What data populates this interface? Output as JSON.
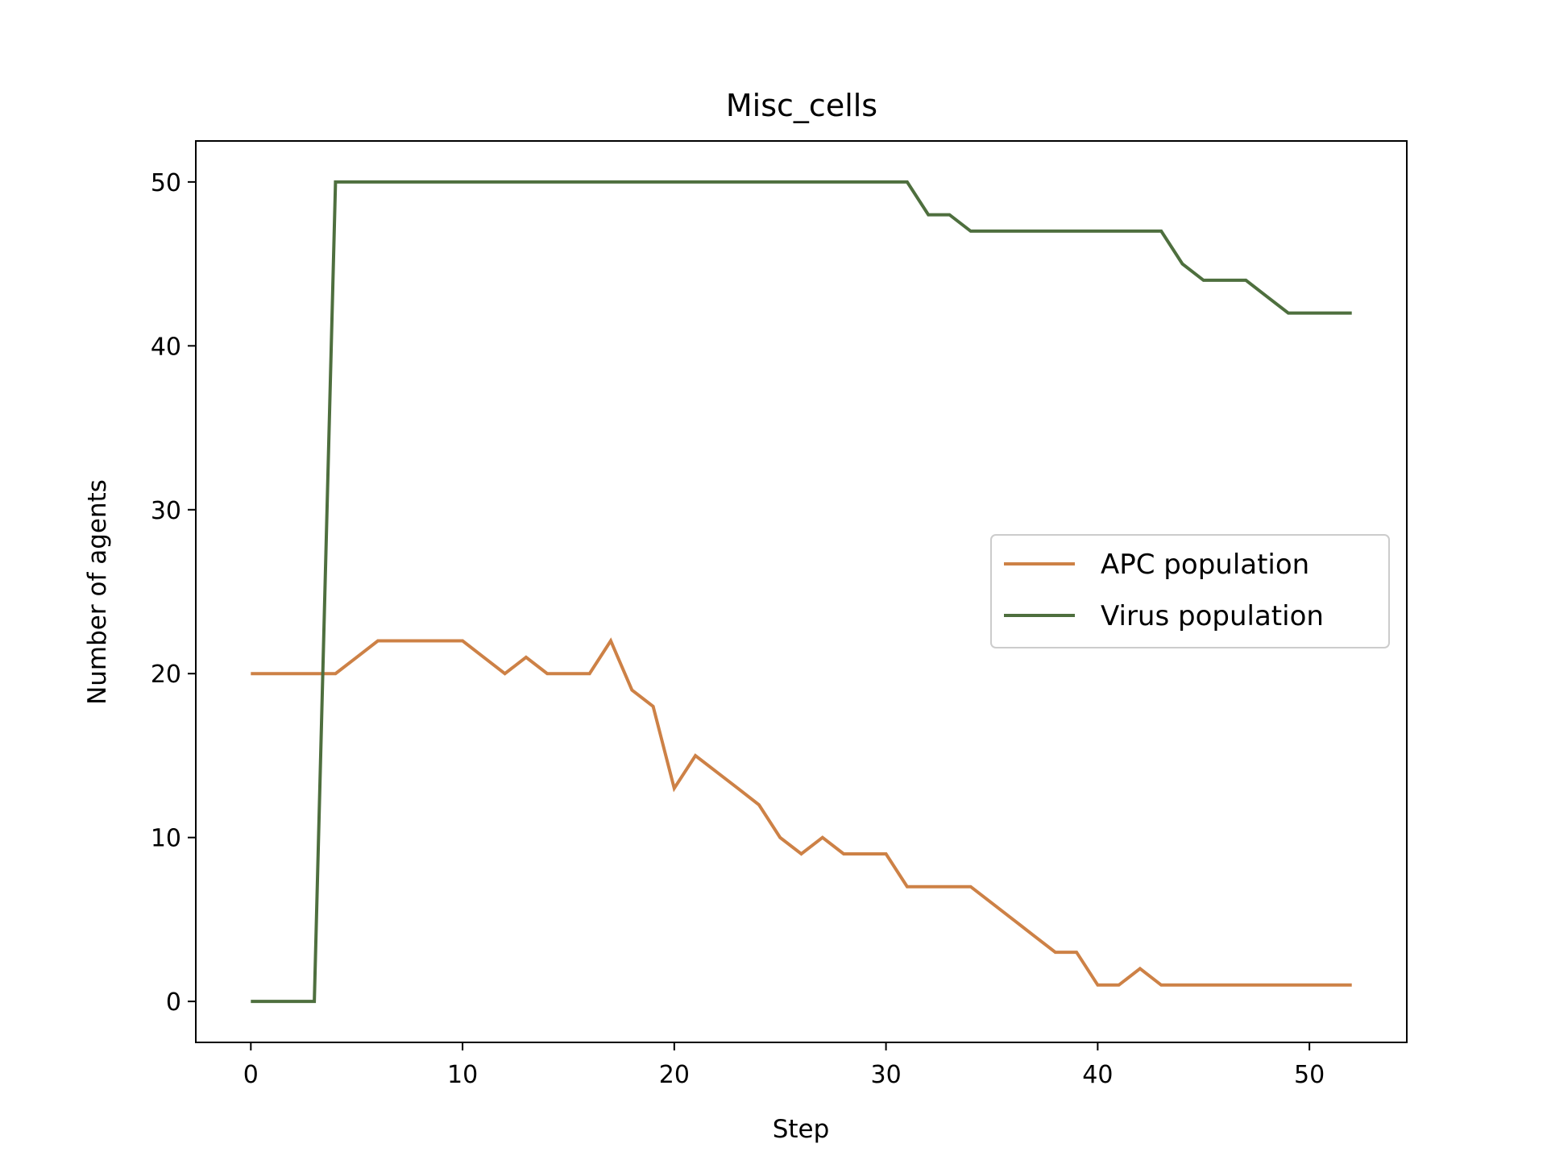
{
  "chart_data": {
    "type": "line",
    "title": "Misc_cells",
    "xlabel": "Step",
    "ylabel": "Number of agents",
    "xlim": [
      -2.6,
      54.6
    ],
    "ylim": [
      -2.5,
      52.5
    ],
    "xticks": [
      0,
      10,
      20,
      30,
      40,
      50
    ],
    "yticks": [
      0,
      10,
      20,
      30,
      40,
      50
    ],
    "grid": false,
    "legend_position": "center-right",
    "x": [
      0,
      1,
      2,
      3,
      4,
      5,
      6,
      7,
      8,
      9,
      10,
      11,
      12,
      13,
      14,
      15,
      16,
      17,
      18,
      19,
      20,
      21,
      22,
      23,
      24,
      25,
      26,
      27,
      28,
      29,
      30,
      31,
      32,
      33,
      34,
      35,
      36,
      37,
      38,
      39,
      40,
      41,
      42,
      43,
      44,
      45,
      46,
      47,
      48,
      49,
      50,
      51,
      52
    ],
    "series": [
      {
        "name": "APC population",
        "color": "#cd8146",
        "values": [
          20,
          20,
          20,
          20,
          20,
          21,
          22,
          22,
          22,
          22,
          22,
          21,
          20,
          21,
          20,
          20,
          20,
          22,
          19,
          18,
          13,
          15,
          14,
          13,
          12,
          10,
          9,
          10,
          9,
          9,
          9,
          7,
          7,
          7,
          7,
          6,
          5,
          4,
          3,
          3,
          1,
          1,
          2,
          1,
          1,
          1,
          1,
          1,
          1,
          1,
          1,
          1,
          1
        ]
      },
      {
        "name": "Virus population",
        "color": "#4e6f3e",
        "values": [
          0,
          0,
          0,
          0,
          50,
          50,
          50,
          50,
          50,
          50,
          50,
          50,
          50,
          50,
          50,
          50,
          50,
          50,
          50,
          50,
          50,
          50,
          50,
          50,
          50,
          50,
          50,
          50,
          50,
          50,
          50,
          50,
          48,
          48,
          47,
          47,
          47,
          47,
          47,
          47,
          47,
          47,
          47,
          47,
          45,
          44,
          44,
          44,
          43,
          42,
          42,
          42,
          42
        ]
      }
    ]
  }
}
